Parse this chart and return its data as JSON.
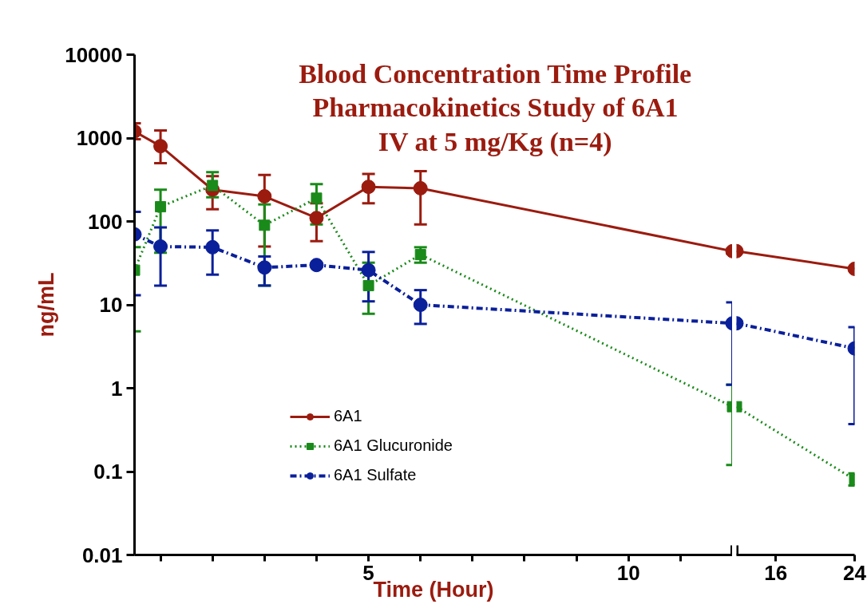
{
  "chart_data": [
    {
      "type": "line",
      "title": "Blood Concentration Time Profile\nPharmacokinetics Study of 6A1\nIV at 5 mg/Kg (n=4)",
      "xlabel": "Time (Hour)",
      "ylabel": "ng/mL",
      "x": [
        0.5,
        1,
        2,
        3,
        4,
        5,
        6,
        12
      ],
      "series": [
        {
          "name": "6A1",
          "color": "#9b1b0f",
          "marker": "circle",
          "line_style": "solid",
          "values": [
            1200,
            800,
            240,
            200,
            110,
            260,
            250,
            44
          ],
          "errors": [
            [
              970,
              1500
            ],
            [
              500,
              1230
            ],
            [
              140,
              350
            ],
            [
              50,
              360
            ],
            [
              58,
              165
            ],
            [
              165,
              370
            ],
            [
              92,
              400
            ],
            [
              41,
              47
            ]
          ]
        },
        {
          "name": "6A1 Glucuronide",
          "color": "#1a8a1a",
          "marker": "square",
          "line_style": "dotted",
          "values": [
            26,
            150,
            270,
            90,
            190,
            17,
            40,
            0.6
          ],
          "errors": [
            [
              4.8,
              49
            ],
            [
              42,
              240
            ],
            [
              195,
              390
            ],
            [
              17,
              160
            ],
            [
              92,
              280
            ],
            [
              7.8,
              32
            ],
            [
              32,
              49
            ],
            [
              0.12,
              1.1
            ]
          ]
        },
        {
          "name": "6A1 Sulfate",
          "color": "#0a1f9a",
          "marker": "circle",
          "line_style": "dashdot",
          "values": [
            70,
            50,
            49,
            28,
            30,
            26,
            10,
            6
          ],
          "errors": [
            [
              13,
              130
            ],
            [
              17,
              85
            ],
            [
              23,
              78
            ],
            [
              17,
              38
            ],
            null,
            [
              11,
              43
            ],
            [
              5.9,
              15
            ],
            [
              1.1,
              10.7
            ]
          ]
        }
      ],
      "log": "y",
      "xlim": [
        0.5,
        12
      ],
      "xticks": [
        {
          "value": 1,
          "label": null
        },
        {
          "value": 2,
          "label": null
        },
        {
          "value": 3,
          "label": null
        },
        {
          "value": 4,
          "label": null
        },
        5,
        {
          "value": 6,
          "label": null
        },
        {
          "value": 7,
          "label": null
        },
        {
          "value": 8,
          "label": null
        },
        {
          "value": 9,
          "label": null
        },
        10,
        {
          "value": 11,
          "label": null
        }
      ],
      "ylim": [
        0.01,
        10000
      ],
      "yticks": [
        0.01,
        0.1,
        1,
        10,
        100,
        1000,
        10000
      ],
      "grid": false,
      "legend": "left"
    },
    {
      "type": "line",
      "x": [
        12,
        24
      ],
      "series": [
        {
          "color": "#9b1b0f",
          "marker": "circle",
          "line_style": "solid",
          "values": [
            44,
            27
          ],
          "errors": [
            null,
            null
          ]
        },
        {
          "color": "#1a8a1a",
          "marker": "square",
          "line_style": "dotted",
          "values": [
            0.6,
            0.08
          ],
          "errors": [
            null,
            [
              0.068,
              0.095
            ]
          ]
        },
        {
          "color": "#0a1f9a",
          "marker": "circle",
          "line_style": "dashdot",
          "values": [
            6,
            3
          ],
          "errors": [
            null,
            [
              0.37,
              5.4
            ]
          ]
        }
      ],
      "log": "y",
      "xlim": [
        12,
        24
      ],
      "xticks": [
        16,
        24
      ],
      "ylim": [
        0.01,
        10000
      ],
      "yticks": [
        0.01,
        0.1,
        1,
        10,
        100,
        1000,
        10000
      ],
      "tick_labels": "x",
      "grid": false
    }
  ]
}
